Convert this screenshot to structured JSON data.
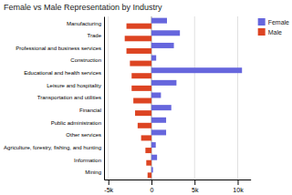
{
  "chart_data": {
    "type": "bar",
    "orientation": "horizontal",
    "title": "Female vs Male Representation by Industry",
    "categories": [
      "Manufacturing",
      "Trade",
      "Professional and business services",
      "Construction",
      "Educational and health services",
      "Leisure and hospitality",
      "Transportation and utilities",
      "Financial",
      "Public administration",
      "Other services",
      "Agriculture, forestry, fishing, and hunting",
      "Information",
      "Mining"
    ],
    "series": [
      {
        "name": "Female",
        "color": "#6666dd",
        "values": [
          1800,
          3300,
          2600,
          550,
          10500,
          2900,
          1100,
          2300,
          1700,
          1700,
          500,
          650,
          180
        ]
      },
      {
        "name": "Male",
        "color": "#dd4422",
        "values": [
          -2900,
          -3100,
          -2900,
          -2500,
          -2300,
          -2300,
          -2100,
          -1900,
          -1600,
          -1200,
          -700,
          -600,
          -450
        ]
      }
    ],
    "xlim": [
      -5500,
      11500
    ],
    "xticks": [
      {
        "value": -5000,
        "label": "-5k"
      },
      0,
      {
        "value": 5000,
        "label": "5k"
      },
      {
        "value": 10000,
        "label": "10k"
      }
    ],
    "grid": true,
    "legend": "right"
  }
}
